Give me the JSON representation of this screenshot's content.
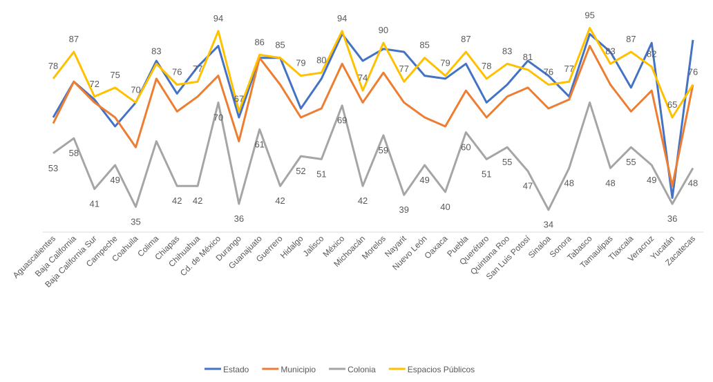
{
  "chart_data": {
    "type": "line",
    "categories": [
      "Aguascalientes",
      "Baja California",
      "Baja California Sur",
      "Campeche",
      "Coahuila",
      "Colima",
      "Chiapas",
      "Chihuahua",
      "Cd. de México",
      "Durango",
      "Guanajuato",
      "Guerrero",
      "Hidalgo",
      "Jalisco",
      "México",
      "Michoacán",
      "Morelos",
      "Nayarit",
      "Nuevo León",
      "Oaxaca",
      "Puebla",
      "Querétaro",
      "Quintana Roo",
      "San Luis Potosí",
      "Sinaloa",
      "Sonora",
      "Tabasco",
      "Tamaulipas",
      "Tlaxcala",
      "Veracruz",
      "Yucatán",
      "Zacatecas"
    ],
    "ylim": [
      30,
      100
    ],
    "series": [
      {
        "name": "Estado",
        "color": "#4472c4",
        "values": [
          65,
          77,
          71,
          62,
          70,
          84,
          73,
          82,
          89,
          65,
          85,
          85,
          68,
          78,
          93,
          84,
          88,
          87,
          79,
          78,
          83,
          70,
          76,
          84,
          79,
          72,
          93,
          87,
          75,
          90,
          38,
          91
        ]
      },
      {
        "name": "Municipio",
        "color": "#ed7d31",
        "values": [
          63,
          77,
          70,
          65,
          55,
          78,
          67,
          72,
          79,
          57,
          85,
          76,
          65,
          68,
          83,
          70,
          80,
          70,
          65,
          62,
          74,
          65,
          72,
          75,
          68,
          71,
          89,
          76,
          67,
          74,
          42,
          76
        ]
      },
      {
        "name": "Colonia",
        "color": "#a5a5a5",
        "values": [
          53,
          58,
          41,
          49,
          35,
          57,
          42,
          42,
          70,
          36,
          61,
          42,
          52,
          51,
          69,
          42,
          59,
          39,
          49,
          40,
          60,
          51,
          55,
          47,
          34,
          48,
          70,
          48,
          55,
          49,
          36,
          48
        ],
        "value_labels": [
          "53",
          "58",
          "41",
          "49",
          "35",
          null,
          "42",
          "42",
          "70",
          "36",
          "61",
          "42",
          "52",
          "51",
          "69",
          "42",
          "59",
          "39",
          "49",
          "40",
          "60",
          "51",
          "55",
          "47",
          "34",
          "48",
          null,
          "48",
          "55",
          "49",
          "36",
          "48"
        ]
      },
      {
        "name": "Espacios Públicos",
        "color": "#ffc000",
        "values": [
          78,
          87,
          72,
          75,
          70,
          83,
          76,
          77,
          94,
          67,
          86,
          85,
          79,
          80,
          94,
          74,
          90,
          77,
          85,
          79,
          87,
          78,
          83,
          81,
          76,
          77,
          95,
          83,
          87,
          82,
          65,
          76
        ],
        "value_labels": [
          "78",
          "87",
          "72",
          "75",
          "70",
          "83",
          "76",
          "77",
          "94",
          "67",
          "86",
          "85",
          "79",
          "80",
          "94",
          "74",
          "90",
          "77",
          "85",
          "79",
          "87",
          "78",
          "83",
          "81",
          "76",
          "77",
          "95",
          "83",
          "87",
          "82",
          "65",
          "76"
        ]
      }
    ]
  }
}
